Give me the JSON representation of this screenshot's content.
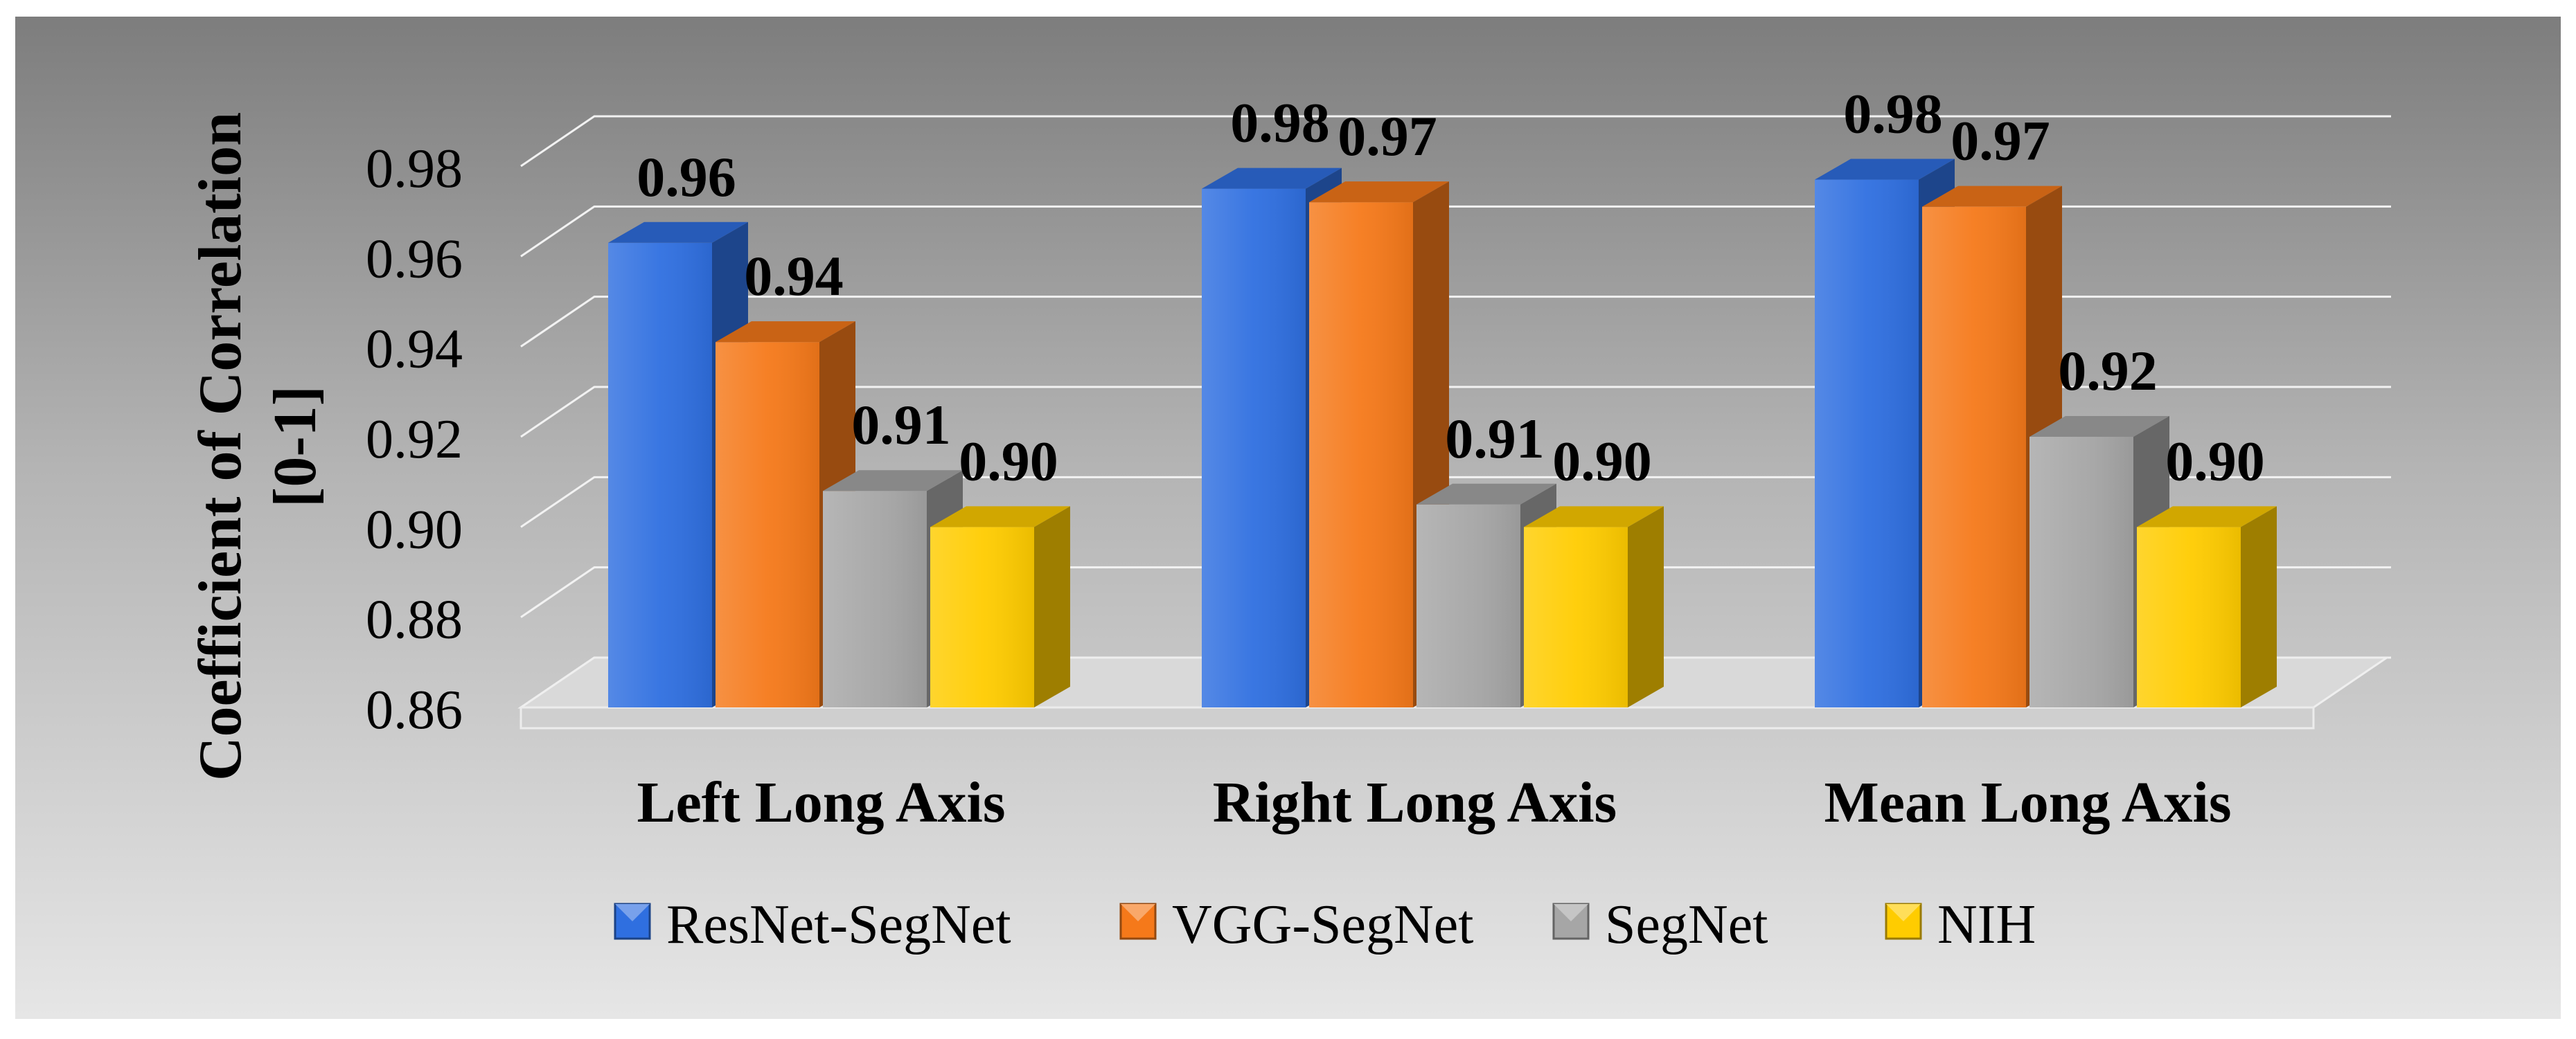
{
  "chart_data": {
    "type": "bar",
    "ylabel_line1": "Coefficient of Correlation",
    "ylabel_line2": "[0-1]",
    "ylim": [
      0.86,
      0.98
    ],
    "yticks": [
      "0.86",
      "0.88",
      "0.90",
      "0.92",
      "0.94",
      "0.96",
      "0.98"
    ],
    "categories": [
      "Left Long Axis",
      "Right Long Axis",
      "Mean Long Axis"
    ],
    "series": [
      {
        "name": "ResNet-SegNet",
        "values": [
          0.963,
          0.975,
          0.977
        ],
        "labels": [
          "0.96",
          "0.98",
          "0.98"
        ],
        "color": "#2f6fe0"
      },
      {
        "name": "VGG-SegNet",
        "values": [
          0.941,
          0.972,
          0.971
        ],
        "labels": [
          "0.94",
          "0.97",
          "0.97"
        ],
        "color": "#f5791a"
      },
      {
        "name": "SegNet",
        "values": [
          0.908,
          0.905,
          0.92
        ],
        "labels": [
          "0.91",
          "0.91",
          "0.92"
        ],
        "color": "#a6a6a6"
      },
      {
        "name": "NIH",
        "values": [
          0.9,
          0.9,
          0.9
        ],
        "labels": [
          "0.90",
          "0.90",
          "0.90"
        ],
        "color": "#ffcc00"
      }
    ],
    "grid": true,
    "legend_position": "bottom"
  }
}
